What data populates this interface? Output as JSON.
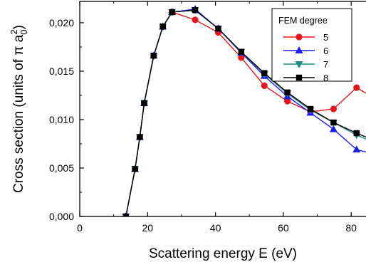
{
  "chart_data": {
    "type": "line",
    "xlabel": "Scattering energy E (eV)",
    "ylabel_prefix": "Cross section (units of π a",
    "ylabel_sub": "0",
    "ylabel_sup": "2",
    "ylabel_suffix": ")",
    "xlim": [
      0,
      85
    ],
    "ylim": [
      0,
      0.0222
    ],
    "xticks": [
      0,
      20,
      40,
      60,
      80
    ],
    "yticks": [
      0.0,
      0.005,
      0.01,
      0.015,
      0.02
    ],
    "xtick_labels": [
      "0",
      "20",
      "40",
      "60",
      "80"
    ],
    "ytick_labels": [
      "0,000",
      "0,005",
      "0,010",
      "0,015",
      "0,020"
    ],
    "legend_title": "FEM degree",
    "legend_placement": "top-right",
    "grid": false,
    "series": [
      {
        "name": "5",
        "color": "#e8141c",
        "marker": "circle",
        "points": [
          [
            13.6,
            0.0
          ],
          [
            16.3,
            0.0049
          ],
          [
            17.7,
            0.0082
          ],
          [
            19.0,
            0.0117
          ],
          [
            21.8,
            0.0166
          ],
          [
            24.5,
            0.0196
          ],
          [
            27.2,
            0.0211
          ],
          [
            34.0,
            0.0203
          ],
          [
            40.8,
            0.019
          ],
          [
            47.6,
            0.0164
          ],
          [
            54.4,
            0.0135
          ],
          [
            61.2,
            0.0119
          ],
          [
            68.0,
            0.0108
          ],
          [
            74.8,
            0.0111
          ],
          [
            81.6,
            0.0133
          ],
          [
            85,
            0.0126
          ]
        ]
      },
      {
        "name": "6",
        "color": "#1c1cf0",
        "marker": "triangle-up",
        "points": [
          [
            13.6,
            0.0
          ],
          [
            16.3,
            0.0049
          ],
          [
            17.7,
            0.0082
          ],
          [
            19.0,
            0.0117
          ],
          [
            21.8,
            0.0166
          ],
          [
            24.5,
            0.0196
          ],
          [
            27.2,
            0.0211
          ],
          [
            34.0,
            0.0214
          ],
          [
            40.8,
            0.0194
          ],
          [
            47.6,
            0.0169
          ],
          [
            54.4,
            0.0145
          ],
          [
            61.2,
            0.0124
          ],
          [
            68.0,
            0.0107
          ],
          [
            74.8,
            0.009
          ],
          [
            81.6,
            0.0069
          ],
          [
            85,
            0.0066
          ]
        ]
      },
      {
        "name": "7",
        "color": "#1a8a84",
        "marker": "triangle-down",
        "points": [
          [
            13.6,
            0.0
          ],
          [
            16.3,
            0.0049
          ],
          [
            17.7,
            0.0082
          ],
          [
            19.0,
            0.0117
          ],
          [
            21.8,
            0.0166
          ],
          [
            24.5,
            0.0196
          ],
          [
            27.2,
            0.0211
          ],
          [
            34.0,
            0.0213
          ],
          [
            40.8,
            0.0194
          ],
          [
            47.6,
            0.017
          ],
          [
            54.4,
            0.0147
          ],
          [
            61.2,
            0.0127
          ],
          [
            68.0,
            0.011
          ],
          [
            74.8,
            0.0097
          ],
          [
            81.6,
            0.0084
          ],
          [
            85,
            0.0079
          ]
        ]
      },
      {
        "name": "8",
        "color": "#000000",
        "marker": "square",
        "points": [
          [
            13.6,
            0.0
          ],
          [
            16.3,
            0.0049
          ],
          [
            17.7,
            0.0082
          ],
          [
            19.0,
            0.0117
          ],
          [
            21.8,
            0.0166
          ],
          [
            24.5,
            0.0196
          ],
          [
            27.2,
            0.0211
          ],
          [
            34.0,
            0.0213
          ],
          [
            40.8,
            0.0194
          ],
          [
            47.6,
            0.017
          ],
          [
            54.4,
            0.0148
          ],
          [
            61.2,
            0.0128
          ],
          [
            68.0,
            0.0111
          ],
          [
            74.8,
            0.0097
          ],
          [
            81.6,
            0.0086
          ],
          [
            85,
            0.0081
          ]
        ]
      }
    ]
  }
}
